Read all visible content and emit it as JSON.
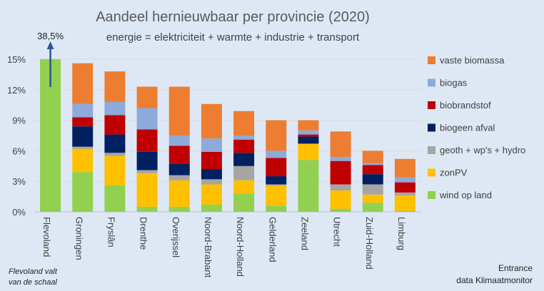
{
  "chart_data": {
    "type": "bar",
    "stacked": true,
    "title": "Aandeel hernieuwbaar per provincie (2020)",
    "subtitle": "energie = elektriciteit + warmte + industrie + transport",
    "ylim": [
      0,
      15
    ],
    "yticks": [
      "0%",
      "3%",
      "6%",
      "9%",
      "12%",
      "15%"
    ],
    "grid": true,
    "legend_position": "right",
    "categories": [
      "Flevoland",
      "Groningen",
      "Fryslân",
      "Drenthe",
      "Overijssel",
      "Noord-Brabant",
      "Noord-Holland",
      "Gelderland",
      "Zeeland",
      "Utrecht",
      "Zuid-Holland",
      "Limburg"
    ],
    "series": [
      {
        "name": "wind op land",
        "color": "#92d050",
        "values": [
          15,
          3.9,
          2.6,
          0.5,
          0.5,
          0.7,
          1.8,
          0.6,
          5.1,
          0.3,
          0.9,
          0.1
        ]
      },
      {
        "name": "zonPV",
        "color": "#ffc000",
        "values": [
          0,
          2.3,
          2.9,
          3.3,
          2.6,
          2.0,
          1.3,
          2.0,
          1.6,
          1.8,
          0.8,
          1.5
        ]
      },
      {
        "name": "geoth + wp's + hydro",
        "color": "#a5a5a5",
        "values": [
          0,
          0.2,
          0.3,
          0.3,
          0.5,
          0.5,
          1.4,
          0.1,
          0,
          0.6,
          1.0,
          0.3
        ]
      },
      {
        "name": "biogeen afval",
        "color": "#002060",
        "values": [
          0,
          2.0,
          1.8,
          1.8,
          1.1,
          1.0,
          1.3,
          0.8,
          0.7,
          0,
          1.0,
          0
        ]
      },
      {
        "name": "biobrandstof",
        "color": "#c00000",
        "values": [
          0,
          0.9,
          1.9,
          2.2,
          1.8,
          1.7,
          1.3,
          1.8,
          0.2,
          2.3,
          0.9,
          1.0
        ]
      },
      {
        "name": "biogas",
        "color": "#8eaadb",
        "values": [
          0,
          1.3,
          1.3,
          2.1,
          1.0,
          1.3,
          0.4,
          0.7,
          0.4,
          0.4,
          0.2,
          0.5
        ]
      },
      {
        "name": "vaste biomassa",
        "color": "#ed7d31",
        "values": [
          0,
          4.0,
          3.0,
          2.1,
          4.8,
          3.4,
          2.4,
          3.0,
          1.0,
          2.5,
          1.2,
          1.8
        ]
      }
    ],
    "legend_order": [
      "vaste biomassa",
      "biogas",
      "biobrandstof",
      "biogeen afval",
      "geoth + wp's + hydro",
      "zonPV",
      "wind op land"
    ],
    "annotation": "38,5%"
  },
  "notes": {
    "flevoland": [
      "Flevoland valt",
      "van de schaal"
    ],
    "source": [
      "Entrance",
      "data Klimaatmonitor"
    ]
  }
}
